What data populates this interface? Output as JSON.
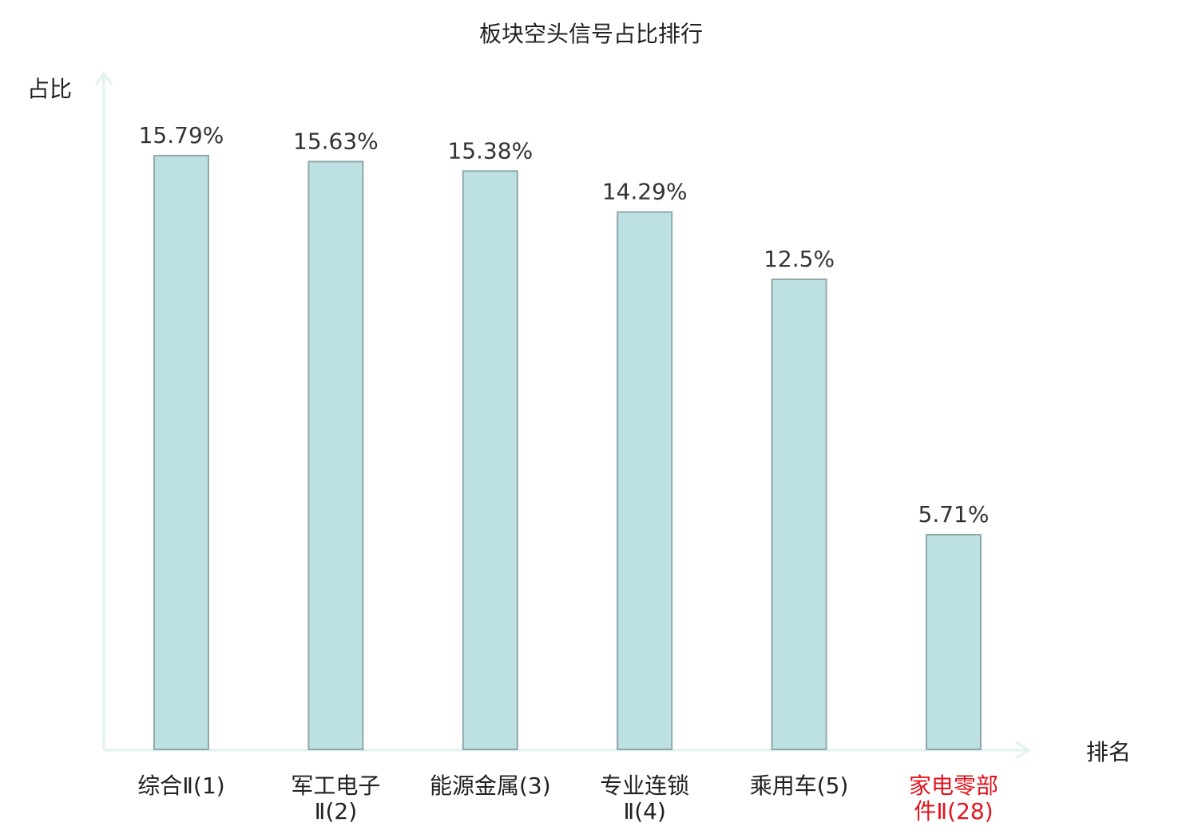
{
  "chart_data": {
    "type": "bar",
    "title": "板块空头信号占比排行",
    "ylabel": "占比",
    "xlabel": "排名",
    "categories": [
      {
        "lines": [
          "综合Ⅱ(1)"
        ],
        "highlight": false
      },
      {
        "lines": [
          "军工电子",
          "Ⅱ(2)"
        ],
        "highlight": false
      },
      {
        "lines": [
          "能源金属(3)"
        ],
        "highlight": false
      },
      {
        "lines": [
          "专业连锁",
          "Ⅱ(4)"
        ],
        "highlight": false
      },
      {
        "lines": [
          "乘用车(5)"
        ],
        "highlight": false
      },
      {
        "lines": [
          "家电零部",
          "件Ⅱ(28)"
        ],
        "highlight": true
      }
    ],
    "values": [
      15.79,
      15.63,
      15.38,
      14.29,
      12.5,
      5.71
    ],
    "value_labels": [
      "15.79%",
      "15.63%",
      "15.38%",
      "14.29%",
      "12.5%",
      "5.71%"
    ],
    "ylim": [
      0,
      15.79
    ],
    "grid": false,
    "colors": {
      "bar_fill": "#bde0e3",
      "bar_stroke": "#8fa9aa",
      "axis": "#e0f2ef",
      "highlight_text": "#e0141e"
    }
  }
}
